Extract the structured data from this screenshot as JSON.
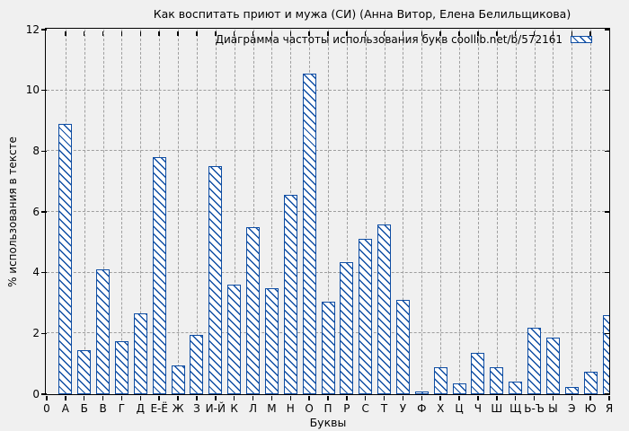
{
  "chart_data": {
    "type": "bar",
    "title": "Как воспитать приют и мужа (СИ) (Анна Витор, Елена Белильщикова)",
    "legend": "Диаграмма частоты использования букв coollib.net/b/572161",
    "legend_position": "top-right-inside",
    "xlabel": "Буквы",
    "ylabel": "% использования в тексте",
    "ylim": [
      0,
      12
    ],
    "yticks": [
      0,
      2,
      4,
      6,
      8,
      10,
      12
    ],
    "x_origin_label": "0",
    "grid": "dashed, horizontal every 2 units, vertical at every letter",
    "bar_style": "white fill with blue backslash hatching, blue outline",
    "categories": [
      "А",
      "Б",
      "В",
      "Г",
      "Д",
      "Е-Ё",
      "Ж",
      "З",
      "И-Й",
      "К",
      "Л",
      "М",
      "Н",
      "О",
      "П",
      "Р",
      "С",
      "Т",
      "У",
      "Ф",
      "Х",
      "Ц",
      "Ч",
      "Ш",
      "Щ",
      "Ь-Ъ",
      "Ы",
      "Э",
      "Ю",
      "Я"
    ],
    "values": [
      8.9,
      1.45,
      4.1,
      1.75,
      2.65,
      7.8,
      0.95,
      1.95,
      7.5,
      3.6,
      5.5,
      3.5,
      6.55,
      10.55,
      3.05,
      4.35,
      5.1,
      5.6,
      3.1,
      0.1,
      0.9,
      0.35,
      1.35,
      0.9,
      0.4,
      2.2,
      1.85,
      0.25,
      0.75,
      2.6
    ],
    "colors": {
      "bar": "#0e4da3",
      "grid": "#9e9e9e",
      "background": "#f0f0f0",
      "text": "#000000"
    }
  }
}
